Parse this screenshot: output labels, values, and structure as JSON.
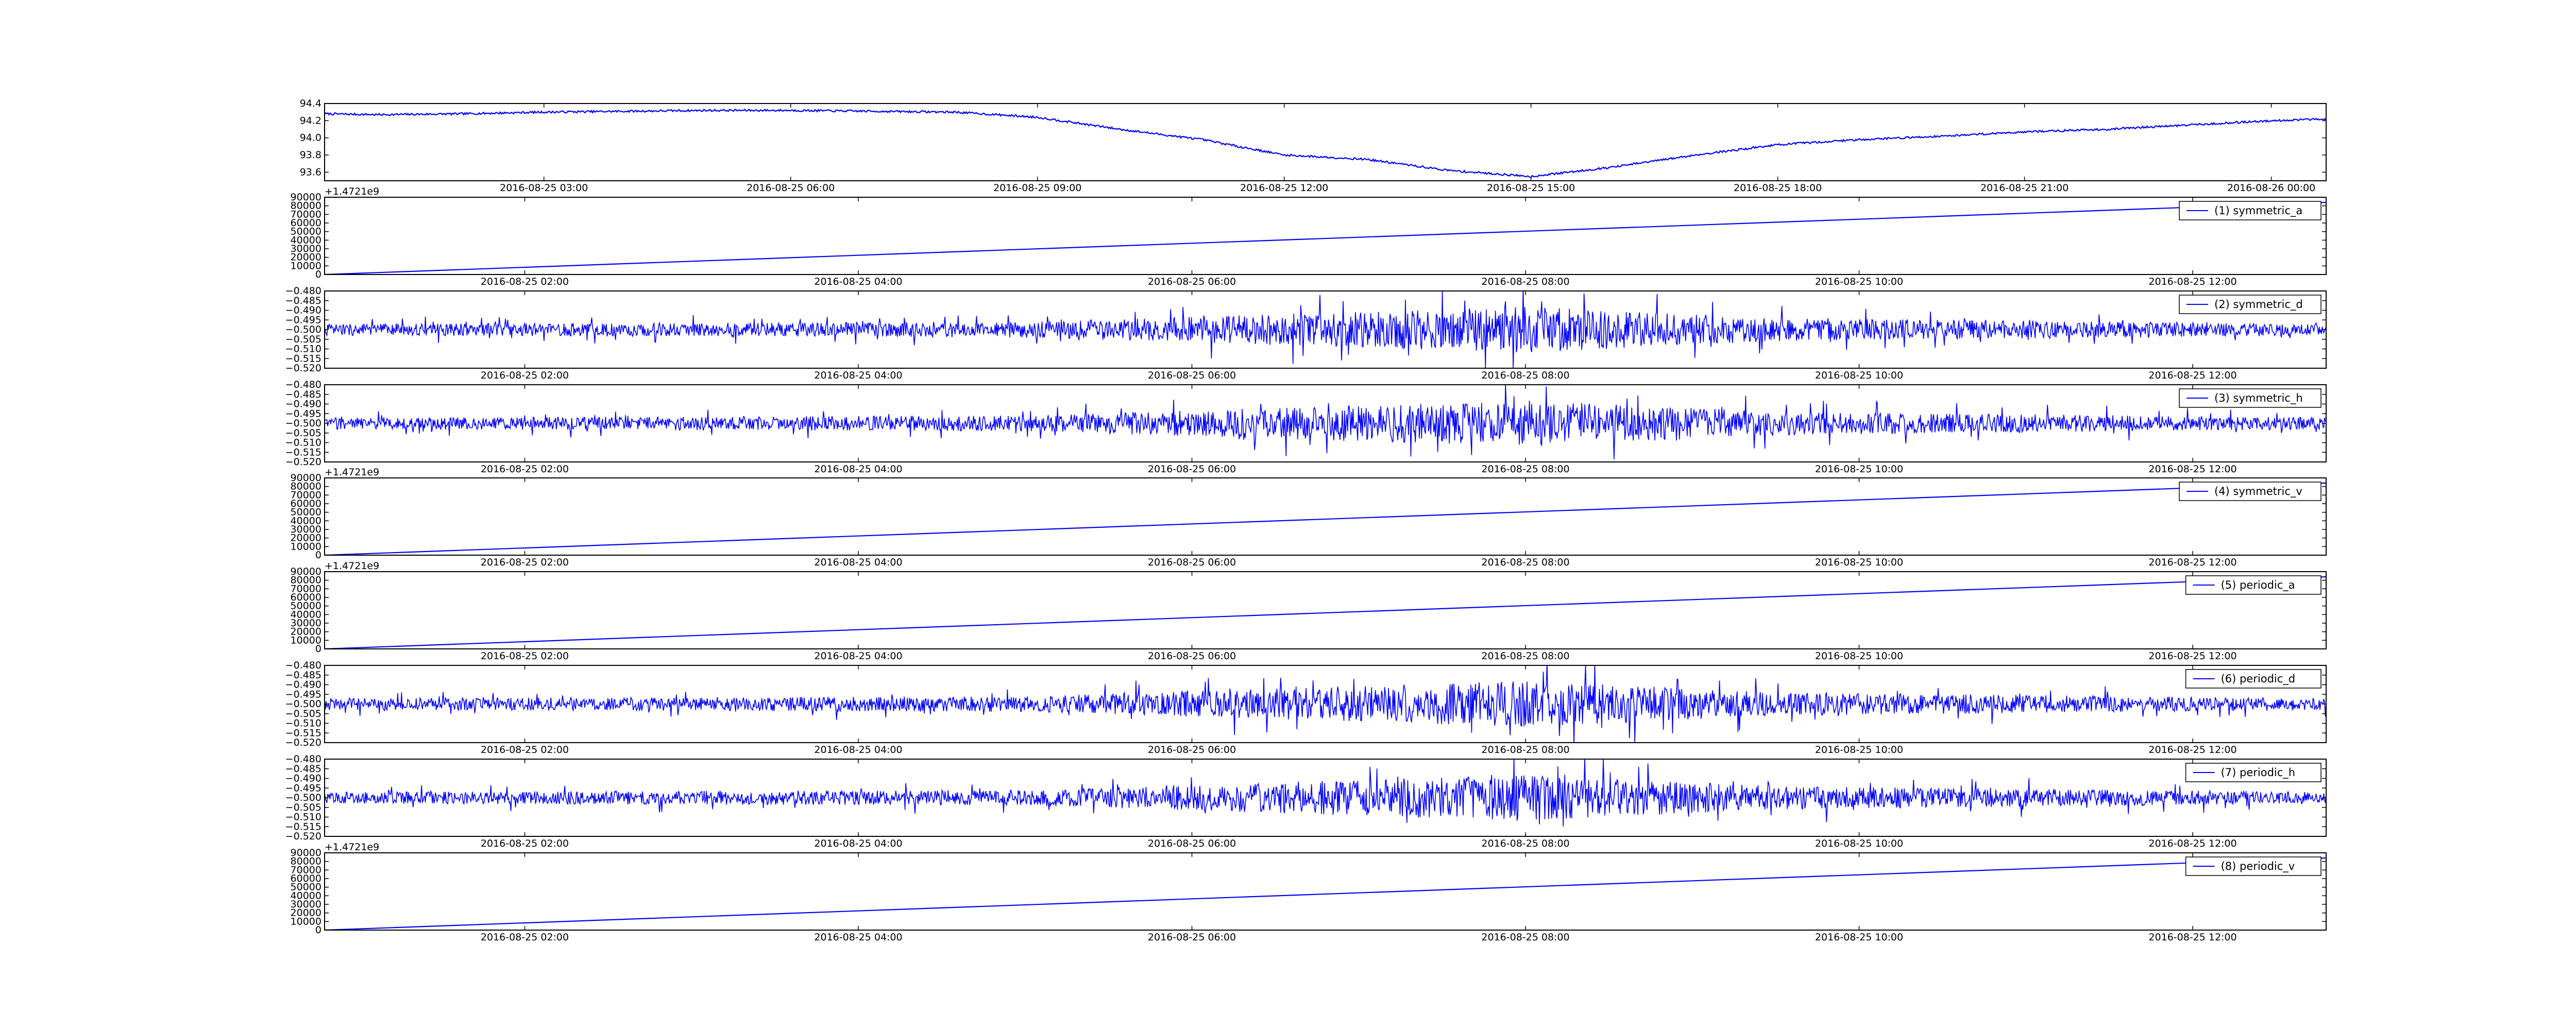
{
  "figure": {
    "line_color": "#0000ff",
    "axes_color": "#000000",
    "background": "#ffffff"
  },
  "chart_data": [
    {
      "type": "line",
      "legend": null,
      "ylim": [
        93.5,
        94.4
      ],
      "y_ticks": [
        93.6,
        93.8,
        94.0,
        94.2,
        94.4
      ],
      "y_tick_labels": [
        "93.6",
        "93.8",
        "94.0",
        "94.2",
        "94.4"
      ],
      "y_offset_label": "",
      "x_ticks": [
        "2016-08-25 03:00",
        "2016-08-25 06:00",
        "2016-08-25 09:00",
        "2016-08-25 12:00",
        "2016-08-25 15:00",
        "2016-08-25 18:00",
        "2016-08-25 21:00",
        "2016-08-26 00:00"
      ],
      "xlim": [
        "2016-08-25 00:20",
        "2016-08-26 00:40"
      ],
      "series": [
        {
          "pattern": "slow",
          "x": [
            "2016-08-25 00:20",
            "2016-08-25 01:00",
            "2016-08-25 02:00",
            "2016-08-25 03:00",
            "2016-08-25 04:00",
            "2016-08-25 05:00",
            "2016-08-25 06:00",
            "2016-08-25 07:00",
            "2016-08-25 08:00",
            "2016-08-25 09:00",
            "2016-08-25 10:00",
            "2016-08-25 11:00",
            "2016-08-25 12:00",
            "2016-08-25 13:00",
            "2016-08-25 14:00",
            "2016-08-25 15:00",
            "2016-08-25 16:00",
            "2016-08-25 17:00",
            "2016-08-25 18:00",
            "2016-08-25 19:00",
            "2016-08-25 20:00",
            "2016-08-25 21:00",
            "2016-08-25 22:00",
            "2016-08-25 23:00",
            "2016-08-26 00:00",
            "2016-08-26 00:40"
          ],
          "values": [
            94.28,
            94.27,
            94.28,
            94.3,
            94.31,
            94.32,
            94.32,
            94.31,
            94.3,
            94.24,
            94.1,
            93.98,
            93.8,
            93.75,
            93.62,
            93.55,
            93.66,
            93.8,
            93.92,
            93.98,
            94.02,
            94.07,
            94.1,
            94.15,
            94.2,
            94.22
          ],
          "noise": 0.012
        }
      ]
    },
    {
      "type": "line",
      "legend": "(1) symmetric_a",
      "ylim": [
        0,
        90000
      ],
      "y_ticks": [
        0,
        10000,
        20000,
        30000,
        40000,
        50000,
        60000,
        70000,
        80000,
        90000
      ],
      "y_tick_labels": [
        "0",
        "10000",
        "20000",
        "30000",
        "40000",
        "50000",
        "60000",
        "70000",
        "80000",
        "90000"
      ],
      "y_offset_label": "+1.4721e9",
      "x_ticks": [
        "2016-08-25 02:00",
        "2016-08-25 04:00",
        "2016-08-25 06:00",
        "2016-08-25 08:00",
        "2016-08-25 10:00",
        "2016-08-25 12:00"
      ],
      "xlim": [
        "2016-08-25 00:48",
        "2016-08-25 12:48"
      ],
      "series": [
        {
          "pattern": "ramp",
          "x": [
            "2016-08-25 00:48",
            "2016-08-25 12:48"
          ],
          "values": [
            0,
            84000
          ]
        }
      ]
    },
    {
      "type": "line",
      "legend": "(2) symmetric_d",
      "ylim": [
        -0.52,
        -0.48
      ],
      "y_ticks": [
        -0.52,
        -0.515,
        -0.51,
        -0.505,
        -0.5,
        -0.495,
        -0.49,
        -0.485,
        -0.48
      ],
      "y_tick_labels": [
        "−0.520",
        "−0.515",
        "−0.510",
        "−0.505",
        "−0.500",
        "−0.495",
        "−0.490",
        "−0.485",
        "−0.480"
      ],
      "y_offset_label": "",
      "x_ticks": [
        "2016-08-25 02:00",
        "2016-08-25 04:00",
        "2016-08-25 06:00",
        "2016-08-25 08:00",
        "2016-08-25 10:00",
        "2016-08-25 12:00"
      ],
      "xlim": [
        "2016-08-25 00:48",
        "2016-08-25 12:48"
      ],
      "series": [
        {
          "pattern": "noise",
          "center": -0.5,
          "x": [
            "2016-08-25 00:48",
            "2016-08-25 05:00",
            "2016-08-25 06:30",
            "2016-08-25 08:00",
            "2016-08-25 09:30",
            "2016-08-25 12:48"
          ],
          "amplitude": [
            0.003,
            0.004,
            0.008,
            0.012,
            0.006,
            0.003
          ]
        }
      ]
    },
    {
      "type": "line",
      "legend": "(3) symmetric_h",
      "ylim": [
        -0.52,
        -0.48
      ],
      "y_ticks": [
        -0.52,
        -0.515,
        -0.51,
        -0.505,
        -0.5,
        -0.495,
        -0.49,
        -0.485,
        -0.48
      ],
      "y_tick_labels": [
        "−0.520",
        "−0.515",
        "−0.510",
        "−0.505",
        "−0.500",
        "−0.495",
        "−0.490",
        "−0.485",
        "−0.480"
      ],
      "y_offset_label": "",
      "x_ticks": [
        "2016-08-25 02:00",
        "2016-08-25 04:00",
        "2016-08-25 06:00",
        "2016-08-25 08:00",
        "2016-08-25 10:00",
        "2016-08-25 12:00"
      ],
      "xlim": [
        "2016-08-25 00:48",
        "2016-08-25 12:48"
      ],
      "series": [
        {
          "pattern": "noise",
          "center": -0.5,
          "x": [
            "2016-08-25 00:48",
            "2016-08-25 05:00",
            "2016-08-25 06:30",
            "2016-08-25 08:00",
            "2016-08-25 09:30",
            "2016-08-25 12:48"
          ],
          "amplitude": [
            0.003,
            0.004,
            0.008,
            0.012,
            0.006,
            0.003
          ]
        }
      ]
    },
    {
      "type": "line",
      "legend": "(4) symmetric_v",
      "ylim": [
        0,
        90000
      ],
      "y_ticks": [
        0,
        10000,
        20000,
        30000,
        40000,
        50000,
        60000,
        70000,
        80000,
        90000
      ],
      "y_tick_labels": [
        "0",
        "10000",
        "20000",
        "30000",
        "40000",
        "50000",
        "60000",
        "70000",
        "80000",
        "90000"
      ],
      "y_offset_label": "+1.4721e9",
      "x_ticks": [
        "2016-08-25 02:00",
        "2016-08-25 04:00",
        "2016-08-25 06:00",
        "2016-08-25 08:00",
        "2016-08-25 10:00",
        "2016-08-25 12:00"
      ],
      "xlim": [
        "2016-08-25 00:48",
        "2016-08-25 12:48"
      ],
      "series": [
        {
          "pattern": "ramp",
          "x": [
            "2016-08-25 00:48",
            "2016-08-25 12:48"
          ],
          "values": [
            0,
            84000
          ]
        }
      ]
    },
    {
      "type": "line",
      "legend": "(5) periodic_a",
      "ylim": [
        0,
        90000
      ],
      "y_ticks": [
        0,
        10000,
        20000,
        30000,
        40000,
        50000,
        60000,
        70000,
        80000,
        90000
      ],
      "y_tick_labels": [
        "0",
        "10000",
        "20000",
        "30000",
        "40000",
        "50000",
        "60000",
        "70000",
        "80000",
        "90000"
      ],
      "y_offset_label": "+1.4721e9",
      "x_ticks": [
        "2016-08-25 02:00",
        "2016-08-25 04:00",
        "2016-08-25 06:00",
        "2016-08-25 08:00",
        "2016-08-25 10:00",
        "2016-08-25 12:00"
      ],
      "xlim": [
        "2016-08-25 00:48",
        "2016-08-25 12:48"
      ],
      "series": [
        {
          "pattern": "ramp",
          "x": [
            "2016-08-25 00:48",
            "2016-08-25 12:48"
          ],
          "values": [
            0,
            84000
          ]
        }
      ]
    },
    {
      "type": "line",
      "legend": "(6) periodic_d",
      "ylim": [
        -0.52,
        -0.48
      ],
      "y_ticks": [
        -0.52,
        -0.515,
        -0.51,
        -0.505,
        -0.5,
        -0.495,
        -0.49,
        -0.485,
        -0.48
      ],
      "y_tick_labels": [
        "−0.520",
        "−0.515",
        "−0.510",
        "−0.505",
        "−0.500",
        "−0.495",
        "−0.490",
        "−0.485",
        "−0.480"
      ],
      "y_offset_label": "",
      "x_ticks": [
        "2016-08-25 02:00",
        "2016-08-25 04:00",
        "2016-08-25 06:00",
        "2016-08-25 08:00",
        "2016-08-25 10:00",
        "2016-08-25 12:00"
      ],
      "xlim": [
        "2016-08-25 00:48",
        "2016-08-25 12:48"
      ],
      "series": [
        {
          "pattern": "noise",
          "center": -0.5,
          "x": [
            "2016-08-25 00:48",
            "2016-08-25 05:00",
            "2016-08-25 06:30",
            "2016-08-25 08:00",
            "2016-08-25 09:30",
            "2016-08-25 12:48"
          ],
          "amplitude": [
            0.003,
            0.004,
            0.008,
            0.012,
            0.006,
            0.003
          ]
        }
      ]
    },
    {
      "type": "line",
      "legend": "(7) periodic_h",
      "ylim": [
        -0.52,
        -0.48
      ],
      "y_ticks": [
        -0.52,
        -0.515,
        -0.51,
        -0.505,
        -0.5,
        -0.495,
        -0.49,
        -0.485,
        -0.48
      ],
      "y_tick_labels": [
        "−0.520",
        "−0.515",
        "−0.510",
        "−0.505",
        "−0.500",
        "−0.495",
        "−0.490",
        "−0.485",
        "−0.480"
      ],
      "y_offset_label": "",
      "x_ticks": [
        "2016-08-25 02:00",
        "2016-08-25 04:00",
        "2016-08-25 06:00",
        "2016-08-25 08:00",
        "2016-08-25 10:00",
        "2016-08-25 12:00"
      ],
      "xlim": [
        "2016-08-25 00:48",
        "2016-08-25 12:48"
      ],
      "series": [
        {
          "pattern": "noise",
          "center": -0.5,
          "x": [
            "2016-08-25 00:48",
            "2016-08-25 05:00",
            "2016-08-25 06:30",
            "2016-08-25 08:00",
            "2016-08-25 09:30",
            "2016-08-25 12:48"
          ],
          "amplitude": [
            0.003,
            0.004,
            0.008,
            0.012,
            0.006,
            0.003
          ]
        }
      ]
    },
    {
      "type": "line",
      "legend": "(8) periodic_v",
      "ylim": [
        0,
        90000
      ],
      "y_ticks": [
        0,
        10000,
        20000,
        30000,
        40000,
        50000,
        60000,
        70000,
        80000,
        90000
      ],
      "y_tick_labels": [
        "0",
        "10000",
        "20000",
        "30000",
        "40000",
        "50000",
        "60000",
        "70000",
        "80000",
        "90000"
      ],
      "y_offset_label": "+1.4721e9",
      "x_ticks": [
        "2016-08-25 02:00",
        "2016-08-25 04:00",
        "2016-08-25 06:00",
        "2016-08-25 08:00",
        "2016-08-25 10:00",
        "2016-08-25 12:00"
      ],
      "xlim": [
        "2016-08-25 00:48",
        "2016-08-25 12:48"
      ],
      "series": [
        {
          "pattern": "ramp",
          "x": [
            "2016-08-25 00:48",
            "2016-08-25 12:48"
          ],
          "values": [
            0,
            84000
          ]
        }
      ]
    }
  ]
}
